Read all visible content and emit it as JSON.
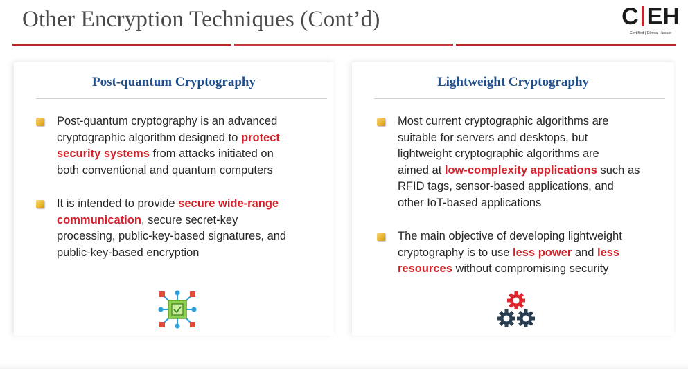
{
  "header": {
    "title": "Other Encryption Techniques (Cont’d)",
    "logo": {
      "letters": "CEH",
      "subtitle": "Certified | Ethical Hacker"
    }
  },
  "panels": [
    {
      "title": "Post-quantum Cryptography",
      "icon": "circuit-chip-icon",
      "bullets": [
        {
          "lines": [
            [
              {
                "t": "Post-quantum cryptography is an advanced"
              }
            ],
            [
              {
                "t": "cryptographic algorithm designed to "
              },
              {
                "t": "protect",
                "hl": true
              }
            ],
            [
              {
                "t": "security systems",
                "hl": true
              },
              {
                "t": " from attacks initiated on"
              }
            ],
            [
              {
                "t": "both conventional and quantum computers"
              }
            ]
          ]
        },
        {
          "lines": [
            [
              {
                "t": "It is intended to provide "
              },
              {
                "t": "secure wide-range",
                "hl": true
              }
            ],
            [
              {
                "t": "communication",
                "hl": true
              },
              {
                "t": ", secure secret-key"
              }
            ],
            [
              {
                "t": "processing, public-key-based signatures, and"
              }
            ],
            [
              {
                "t": "public-key-based encryption"
              }
            ]
          ]
        }
      ]
    },
    {
      "title": "Lightweight Cryptography",
      "icon": "gears-icon",
      "bullets": [
        {
          "lines": [
            [
              {
                "t": "Most current cryptographic algorithms are"
              }
            ],
            [
              {
                "t": "suitable for servers and desktops, but"
              }
            ],
            [
              {
                "t": "lightweight cryptographic algorithms are"
              }
            ],
            [
              {
                "t": "aimed at "
              },
              {
                "t": "low-complexity applications",
                "hl": true
              },
              {
                "t": " such as"
              }
            ],
            [
              {
                "t": "RFID tags, sensor-based applications, and"
              }
            ],
            [
              {
                "t": "other IoT-based applications"
              }
            ]
          ]
        },
        {
          "lines": [
            [
              {
                "t": "The main objective of developing lightweight"
              }
            ],
            [
              {
                "t": "cryptography is to use "
              },
              {
                "t": "less power",
                "hl": true
              },
              {
                "t": " and "
              },
              {
                "t": "less",
                "hl": true
              }
            ],
            [
              {
                "t": "resources",
                "hl": true
              },
              {
                "t": " without compromising security"
              }
            ]
          ]
        }
      ]
    }
  ],
  "colors": {
    "accent": "#d4202a",
    "heading": "#1f4e8c",
    "rule": "#b8292f",
    "marker": "#e8b532"
  }
}
